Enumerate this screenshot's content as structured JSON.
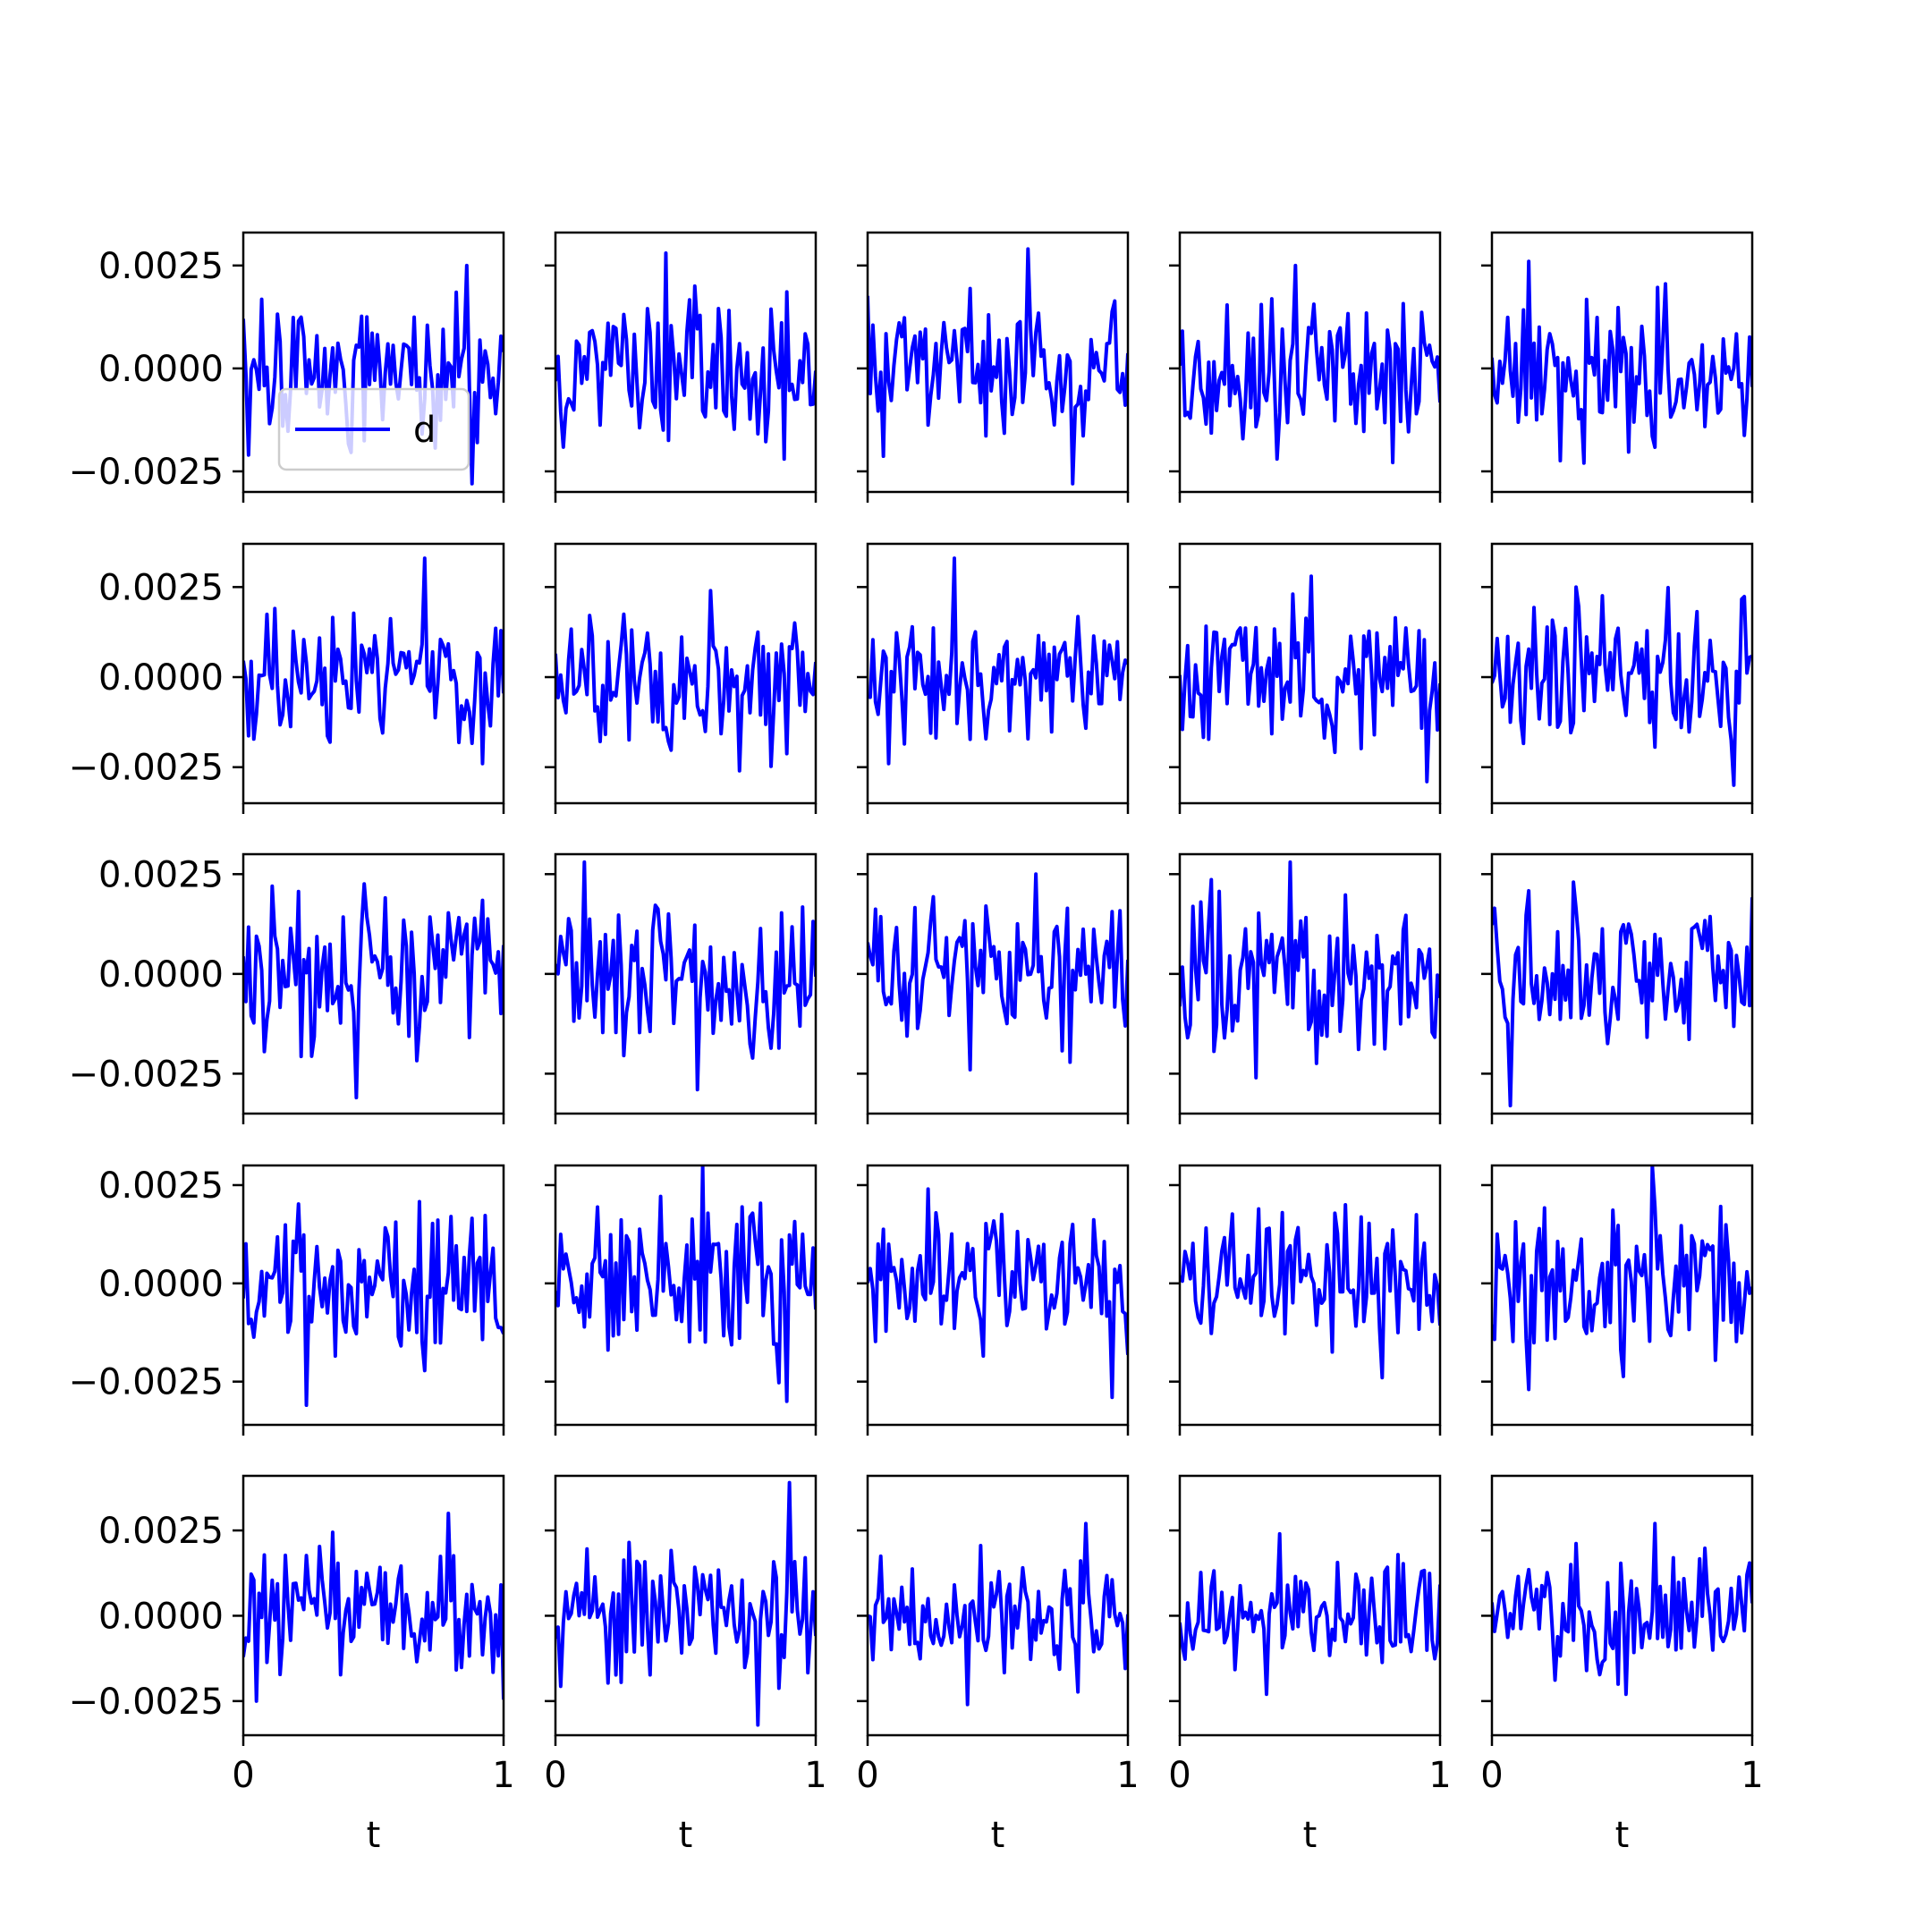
{
  "figure": {
    "rows": 5,
    "cols": 5,
    "line_color": "#0000ff",
    "sharey": "row",
    "xlabel": "t",
    "legend_label": "d",
    "legend_location": "lower-center",
    "legend_subplot": [
      0,
      0
    ]
  },
  "chart_data": {
    "type": "line",
    "xlim": [
      0,
      1
    ],
    "x_ticks": [
      0,
      1
    ],
    "x_tick_labels": [
      "0",
      "1"
    ],
    "y_ticks": [
      -0.0025,
      0,
      0.0025
    ],
    "y_tick_labels": [
      "−0.0025",
      "0.0000",
      "0.0025"
    ],
    "row_ylims": [
      [
        -0.003,
        0.0033
      ],
      [
        -0.0035,
        0.0037
      ],
      [
        -0.0035,
        0.003
      ],
      [
        -0.0036,
        0.003
      ],
      [
        -0.0035,
        0.0041
      ]
    ],
    "points_per_panel": 100,
    "amplitude_note_rows": [
      "",
      "",
      "",
      "",
      ""
    ],
    "panels": [
      [
        {
          "name": "d",
          "seed": 11,
          "amp": 0.00085,
          "min": -0.0028,
          "max": 0.0025
        },
        {
          "name": "d",
          "seed": 12,
          "amp": 0.00085,
          "min": -0.0022,
          "max": 0.0028
        },
        {
          "name": "d",
          "seed": 13,
          "amp": 0.00095,
          "min": -0.0028,
          "max": 0.0029
        },
        {
          "name": "d",
          "seed": 14,
          "amp": 0.0009,
          "min": -0.0022,
          "max": 0.0025
        },
        {
          "name": "d",
          "seed": 15,
          "amp": 0.0009,
          "min": -0.0023,
          "max": 0.0026
        }
      ],
      [
        {
          "name": "d",
          "seed": 21,
          "amp": 0.0009,
          "min": -0.0024,
          "max": 0.0033
        },
        {
          "name": "d",
          "seed": 22,
          "amp": 0.0009,
          "min": -0.0026,
          "max": 0.0024
        },
        {
          "name": "d",
          "seed": 23,
          "amp": 0.0009,
          "min": -0.0024,
          "max": 0.0033
        },
        {
          "name": "d",
          "seed": 24,
          "amp": 0.00095,
          "min": -0.0029,
          "max": 0.0028
        },
        {
          "name": "d",
          "seed": 25,
          "amp": 0.00095,
          "min": -0.003,
          "max": 0.0025
        }
      ],
      [
        {
          "name": "d",
          "seed": 31,
          "amp": 0.0009,
          "min": -0.0031,
          "max": 0.0022
        },
        {
          "name": "d",
          "seed": 32,
          "amp": 0.00095,
          "min": -0.0029,
          "max": 0.0028
        },
        {
          "name": "d",
          "seed": 33,
          "amp": 0.00085,
          "min": -0.0024,
          "max": 0.0025
        },
        {
          "name": "d",
          "seed": 34,
          "amp": 0.00095,
          "min": -0.0026,
          "max": 0.0028
        },
        {
          "name": "d",
          "seed": 35,
          "amp": 0.0009,
          "min": -0.0033,
          "max": 0.0023
        }
      ],
      [
        {
          "name": "d",
          "seed": 41,
          "amp": 0.0009,
          "min": -0.0031,
          "max": 0.0017
        },
        {
          "name": "d",
          "seed": 42,
          "amp": 0.00095,
          "min": -0.003,
          "max": 0.003
        },
        {
          "name": "d",
          "seed": 43,
          "amp": 0.0009,
          "min": -0.0029,
          "max": 0.0024
        },
        {
          "name": "d",
          "seed": 44,
          "amp": 0.00085,
          "min": -0.0024,
          "max": 0.002
        },
        {
          "name": "d",
          "seed": 45,
          "amp": 0.00095,
          "min": -0.0027,
          "max": 0.003
        }
      ],
      [
        {
          "name": "d",
          "seed": 51,
          "amp": 0.0009,
          "min": -0.0025,
          "max": 0.003
        },
        {
          "name": "d",
          "seed": 52,
          "amp": 0.001,
          "min": -0.0032,
          "max": 0.0039
        },
        {
          "name": "d",
          "seed": 53,
          "amp": 0.00085,
          "min": -0.0026,
          "max": 0.0027
        },
        {
          "name": "d",
          "seed": 54,
          "amp": 0.00085,
          "min": -0.0023,
          "max": 0.0024
        },
        {
          "name": "d",
          "seed": 55,
          "amp": 0.0009,
          "min": -0.0023,
          "max": 0.0027
        }
      ]
    ]
  }
}
